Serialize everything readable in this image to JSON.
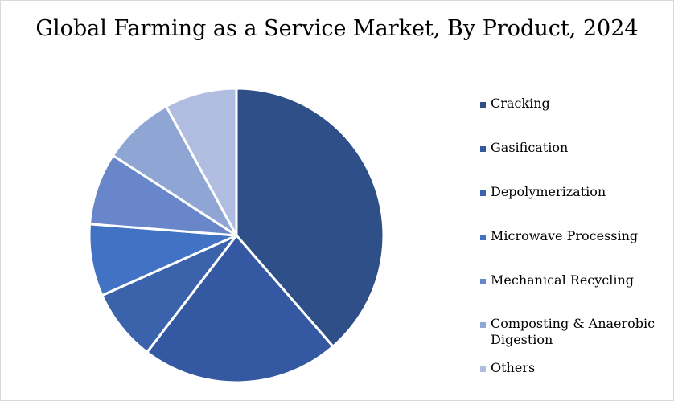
{
  "chart_data": {
    "type": "pie",
    "title": "Global Farming as a Service Market, By Product, 2024",
    "categories": [
      "Cracking",
      "Gasification",
      "Depolymerization",
      "Microwave Processing",
      "Mechanical Recycling",
      "Composting & Anaerobic Digestion",
      "Others"
    ],
    "values": [
      39,
      22,
      8,
      8,
      8,
      8,
      8
    ],
    "colors": [
      "#2f4f89",
      "#3459a2",
      "#3a63ab",
      "#4272c4",
      "#6886c9",
      "#8fa5d4",
      "#b1bde0"
    ],
    "legend_position": "right"
  }
}
